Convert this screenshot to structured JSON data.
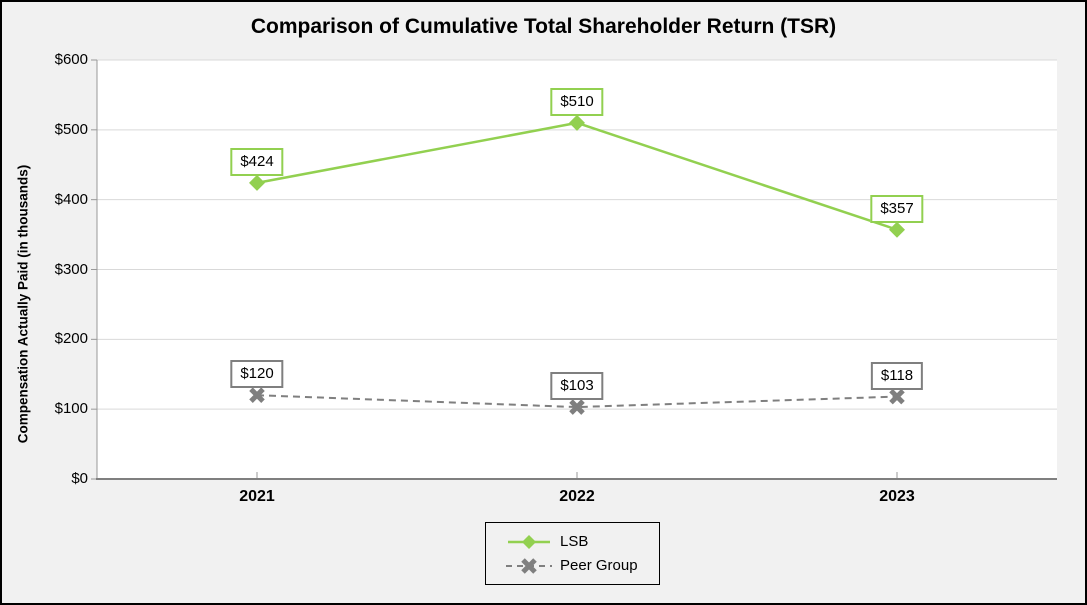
{
  "colors": {
    "background": "#f1f1f1",
    "plot_background": "#ffffff",
    "gridline": "#d9d9d9",
    "axis": "#989898",
    "axis_bottom": "#7f7f7f",
    "lsb_green": "#92d050",
    "peer_gray": "#7f7f7f",
    "frame_border": "#000000",
    "label_box_fill": "#ffffff"
  },
  "chart_data": {
    "type": "line",
    "title": "Comparison of Cumulative Total Shareholder Return (TSR)",
    "ylabel": "Compensation Actually Paid (in thousands)",
    "xlabel": "",
    "categories": [
      "2021",
      "2022",
      "2023"
    ],
    "ylim": [
      0,
      600
    ],
    "yticks": [
      "$0",
      "$100",
      "$200",
      "$300",
      "$400",
      "$500",
      "$600"
    ],
    "grid": true,
    "legend_position": "bottom-center",
    "series": [
      {
        "name": "LSB",
        "values": [
          424,
          510,
          357
        ],
        "labels": [
          "$424",
          "$510",
          "$357"
        ],
        "color": "#92d050",
        "marker": "diamond",
        "line_style": "solid"
      },
      {
        "name": "Peer Group",
        "values": [
          120,
          103,
          118
        ],
        "labels": [
          "$120",
          "$103",
          "$118"
        ],
        "color": "#7f7f7f",
        "marker": "x",
        "line_style": "dashed"
      }
    ]
  }
}
